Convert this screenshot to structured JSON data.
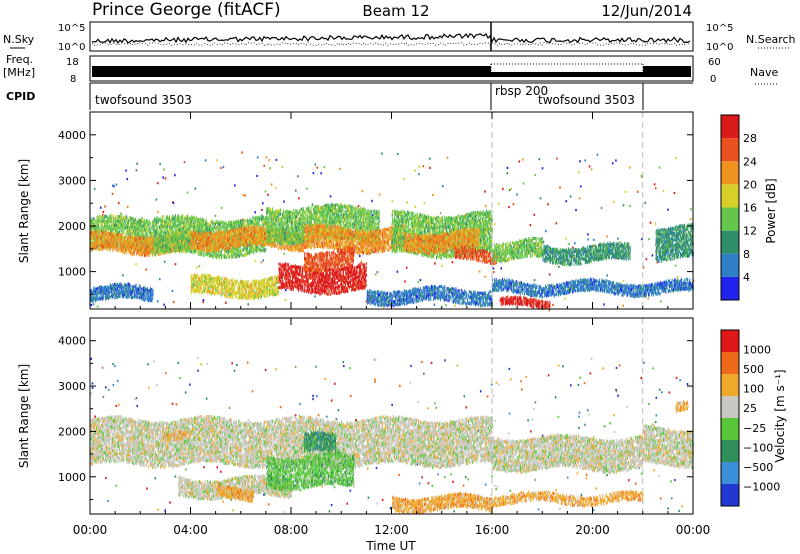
{
  "header": {
    "station": "Prince George (fitACF)",
    "beam": "Beam 12",
    "date": "12/Jun/2014"
  },
  "top_panels": {
    "nsky_label": "N.Sky",
    "nsky_ticks": [
      "10^5",
      "10^0"
    ],
    "nsearch_label": "N.Search",
    "nsearch_ticks": [
      "10^5",
      "10^0"
    ],
    "freq_label": "Freq.",
    "freq_unit": "[MHz]",
    "freq_ticks": [
      "18",
      "8"
    ],
    "nave_label": "Nave",
    "nave_ticks": [
      "60",
      "0"
    ],
    "cpid_label": "CPID",
    "cpid_segments": [
      {
        "name": "twofsound 3503",
        "start_hour": 0,
        "end_hour": 16
      },
      {
        "name": "rbsp 200",
        "start_hour": 16,
        "end_hour": 22
      },
      {
        "name": "twofsound 3503",
        "start_hour": 16,
        "end_hour": 22
      }
    ]
  },
  "chart_data": [
    {
      "type": "heatmap",
      "panel": "power",
      "ylabel": "Slant Range [km]",
      "xlabel": "",
      "xlim": [
        0,
        24
      ],
      "ylim": [
        180,
        4500
      ],
      "yticks": [
        "1000",
        "2000",
        "3000",
        "4000"
      ],
      "xticks": [
        "00:00",
        "04:00",
        "08:00",
        "12:00",
        "16:00",
        "20:00",
        "00:00"
      ],
      "colorbar_label": "Power [dB]",
      "colorbar_ticks": [
        "4",
        "8",
        "12",
        "16",
        "20",
        "24",
        "28"
      ],
      "colors": [
        "#2222ee",
        "#2e7fc6",
        "#2f8f6a",
        "#64c64a",
        "#d8d02a",
        "#ef9320",
        "#e8521e",
        "#dd1a1a"
      ],
      "bands": [
        {
          "start_hour": 0.0,
          "end_hour": 2.5,
          "range_low_km": 1500,
          "range_high_km": 2200,
          "level": 3
        },
        {
          "start_hour": 0.0,
          "end_hour": 4.0,
          "range_low_km": 1450,
          "range_high_km": 1850,
          "level": 5
        },
        {
          "start_hour": 2.5,
          "end_hour": 7.0,
          "range_low_km": 1400,
          "range_high_km": 2200,
          "level": 3
        },
        {
          "start_hour": 4.0,
          "end_hour": 8.5,
          "range_low_km": 1550,
          "range_high_km": 1950,
          "level": 5
        },
        {
          "start_hour": 7.0,
          "end_hour": 11.5,
          "range_low_km": 1700,
          "range_high_km": 2450,
          "level": 3
        },
        {
          "start_hour": 8.5,
          "end_hour": 12.5,
          "range_low_km": 1500,
          "range_high_km": 2000,
          "level": 5
        },
        {
          "start_hour": 12.0,
          "end_hour": 16.0,
          "range_low_km": 1400,
          "range_high_km": 2300,
          "level": 3
        },
        {
          "start_hour": 12.5,
          "end_hour": 15.5,
          "range_low_km": 1500,
          "range_high_km": 1900,
          "level": 5
        },
        {
          "start_hour": 14.5,
          "end_hour": 16.2,
          "range_low_km": 1250,
          "range_high_km": 1500,
          "level": 6
        },
        {
          "start_hour": 16.0,
          "end_hour": 18.0,
          "range_low_km": 1300,
          "range_high_km": 1700,
          "level": 3
        },
        {
          "start_hour": 18.0,
          "end_hour": 21.5,
          "range_low_km": 1250,
          "range_high_km": 1600,
          "level": 2
        },
        {
          "start_hour": 22.5,
          "end_hour": 24.0,
          "range_low_km": 1300,
          "range_high_km": 2000,
          "level": 2
        },
        {
          "start_hour": 0.0,
          "end_hour": 2.5,
          "range_low_km": 400,
          "range_high_km": 700,
          "level": 1
        },
        {
          "start_hour": 4.0,
          "end_hour": 7.5,
          "range_low_km": 500,
          "range_high_km": 900,
          "level": 4
        },
        {
          "start_hour": 7.5,
          "end_hour": 11.0,
          "range_low_km": 600,
          "range_high_km": 1150,
          "level": 7
        },
        {
          "start_hour": 8.5,
          "end_hour": 10.5,
          "range_low_km": 1100,
          "range_high_km": 1500,
          "level": 6
        },
        {
          "start_hour": 11.0,
          "end_hour": 16.0,
          "range_low_km": 350,
          "range_high_km": 650,
          "level": 1
        },
        {
          "start_hour": 16.3,
          "end_hour": 18.3,
          "range_low_km": 250,
          "range_high_km": 420,
          "level": 7
        },
        {
          "start_hour": 16.0,
          "end_hour": 24.0,
          "range_low_km": 550,
          "range_high_km": 800,
          "level": 1
        }
      ]
    },
    {
      "type": "heatmap",
      "panel": "velocity",
      "ylabel": "Slant Range [km]",
      "xlabel": "Time UT",
      "xlim": [
        0,
        24
      ],
      "ylim": [
        180,
        4500
      ],
      "yticks": [
        "1000",
        "2000",
        "3000",
        "4000"
      ],
      "xticks": [
        "00:00",
        "04:00",
        "08:00",
        "12:00",
        "16:00",
        "20:00",
        "00:00"
      ],
      "colorbar_label": "Velocity [m s⁻¹]",
      "colorbar_ticks": [
        "1000",
        "500",
        "100",
        "25",
        "−25",
        "−100",
        "−500",
        "−1000"
      ],
      "colors": [
        "#2238d0",
        "#3b8fd8",
        "#2f8f5a",
        "#58c83a",
        "#c8c8c0",
        "#f0a82a",
        "#ee6a1a",
        "#e01818"
      ],
      "bands": [
        {
          "start_hour": 0.0,
          "end_hour": 16.0,
          "range_low_km": 1300,
          "range_high_km": 2300,
          "level": 4
        },
        {
          "start_hour": 16.0,
          "end_hour": 22.0,
          "range_low_km": 1200,
          "range_high_km": 1900,
          "level": 4
        },
        {
          "start_hour": 22.0,
          "end_hour": 24.0,
          "range_low_km": 1300,
          "range_high_km": 2100,
          "level": 4
        },
        {
          "start_hour": 3.5,
          "end_hour": 8.0,
          "range_low_km": 600,
          "range_high_km": 1000,
          "level": 4
        },
        {
          "start_hour": 7.0,
          "end_hour": 10.5,
          "range_low_km": 800,
          "range_high_km": 1500,
          "level": 3
        },
        {
          "start_hour": 8.5,
          "end_hour": 9.8,
          "range_low_km": 1550,
          "range_high_km": 1950,
          "level": 2
        },
        {
          "start_hour": 5.0,
          "end_hour": 6.5,
          "range_low_km": 550,
          "range_high_km": 800,
          "level": 5
        },
        {
          "start_hour": 3.0,
          "end_hour": 4.0,
          "range_low_km": 1850,
          "range_high_km": 2000,
          "level": 5
        },
        {
          "start_hour": 12.0,
          "end_hour": 16.0,
          "range_low_km": 300,
          "range_high_km": 600,
          "level": 5
        },
        {
          "start_hour": 16.0,
          "end_hour": 22.0,
          "range_low_km": 450,
          "range_high_km": 650,
          "level": 5
        },
        {
          "start_hour": 23.3,
          "end_hour": 23.8,
          "range_low_km": 2500,
          "range_high_km": 2700,
          "level": 5
        }
      ]
    }
  ]
}
